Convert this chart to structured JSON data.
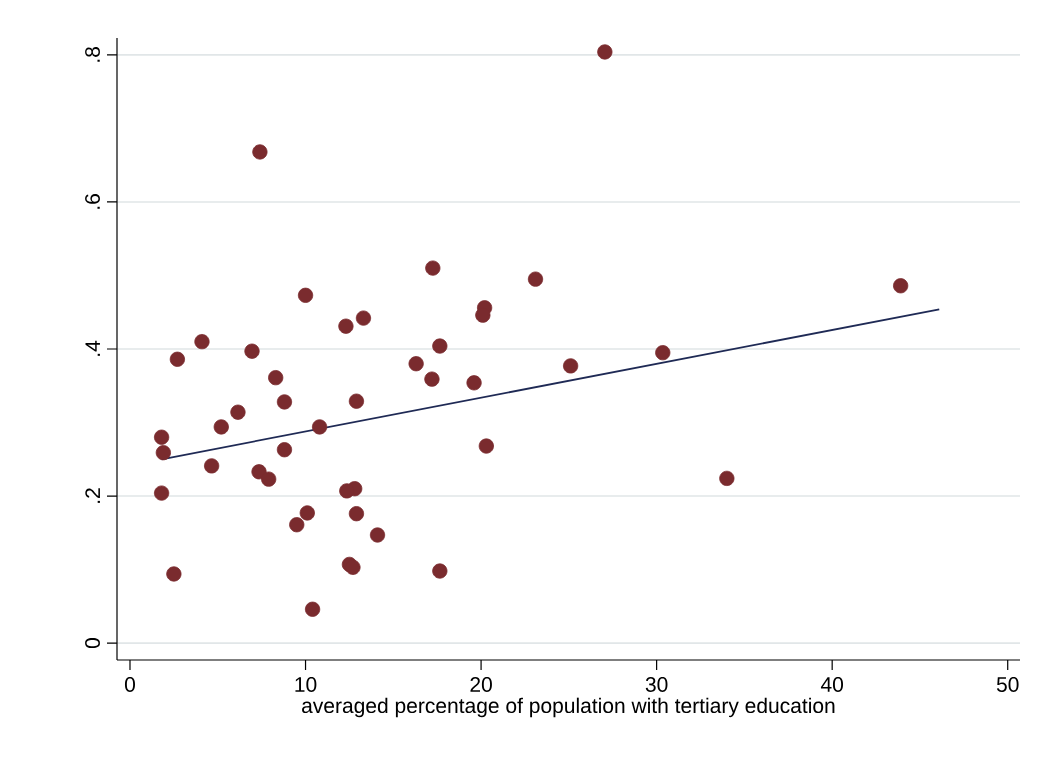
{
  "chart_data": {
    "type": "scatter",
    "xlabel": "averaged percentage of population with tertiary education",
    "xlim": [
      -0.74,
      50.7
    ],
    "ylim": [
      -0.023,
      0.823
    ],
    "xticks": [
      0,
      10,
      20,
      30,
      40,
      50
    ],
    "yticks": [
      0,
      {
        "value": 0.2,
        "label": ".2"
      },
      {
        "value": 0.4,
        "label": ".4"
      },
      {
        "value": 0.6,
        "label": ".6"
      },
      {
        "value": 0.8,
        "label": ".8"
      }
    ],
    "grid": "y",
    "series": [
      {
        "color": "#7a2b2e",
        "marker": "circle",
        "x": [
          27.05,
          7.4,
          17.25,
          23.1,
          43.9,
          10.0,
          20.2,
          20.1,
          13.3,
          12.3,
          4.1,
          17.65,
          6.95,
          30.35,
          2.7,
          16.3,
          25.1,
          8.3,
          17.2,
          19.6,
          12.9,
          8.8,
          6.15,
          5.2,
          10.8,
          1.8,
          20.3,
          8.8,
          1.9,
          7.35,
          4.65,
          7.9,
          34.0,
          12.8,
          12.35,
          1.8,
          12.9,
          10.1,
          9.5,
          14.1,
          12.5,
          12.7,
          2.5,
          17.65,
          10.4
        ],
        "values": [
          0.804,
          0.668,
          0.51,
          0.495,
          0.486,
          0.473,
          0.456,
          0.446,
          0.442,
          0.431,
          0.41,
          0.404,
          0.397,
          0.395,
          0.386,
          0.38,
          0.377,
          0.361,
          0.359,
          0.354,
          0.329,
          0.328,
          0.314,
          0.294,
          0.294,
          0.28,
          0.268,
          0.263,
          0.259,
          0.233,
          0.241,
          0.223,
          0.224,
          0.21,
          0.207,
          0.204,
          0.176,
          0.177,
          0.161,
          0.147,
          0.107,
          0.103,
          0.094,
          0.098,
          0.046
        ]
      },
      {
        "type": "line",
        "color": "#1f2a55",
        "marker": "none",
        "x": [
          1.8,
          46.1
        ],
        "values": [
          0.25,
          0.454
        ]
      }
    ]
  }
}
